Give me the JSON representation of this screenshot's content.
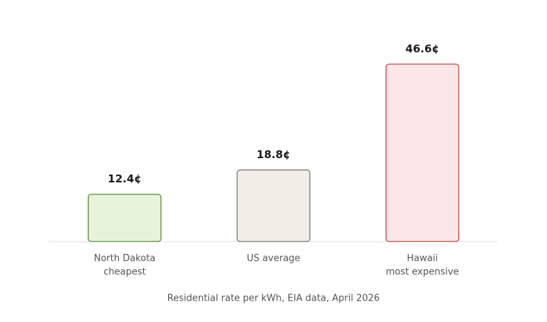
{
  "chart_data": {
    "type": "bar",
    "caption": "Residential rate per kWh, EIA data, April 2026",
    "categories": [
      [
        "North Dakota",
        "cheapest"
      ],
      [
        "US average"
      ],
      [
        "Hawaii",
        "most expensive"
      ]
    ],
    "values": [
      12.4,
      18.8,
      46.6
    ],
    "value_labels": [
      "12.4¢",
      "18.8¢",
      "46.6¢"
    ],
    "colors": [
      "#e8f3dc",
      "#f0eee7",
      "#fbe7e7"
    ],
    "strokes": [
      "#5a8a38",
      "#77776f",
      "#c0474a"
    ]
  }
}
